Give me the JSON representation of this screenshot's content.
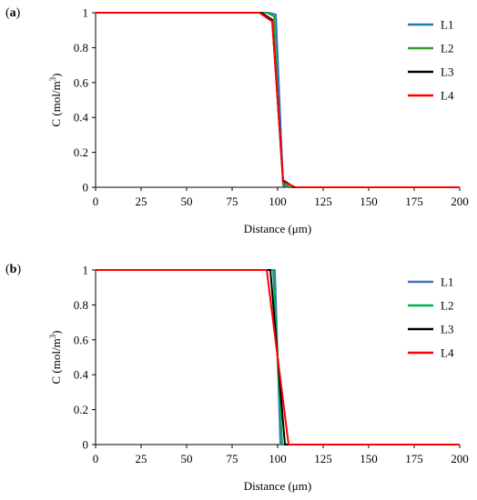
{
  "chart_data": [
    {
      "type": "line",
      "panel_label": "(a)",
      "panel_letter": "a",
      "xlabel": "Distance (μm)",
      "ylabel": "C (mol/m³)",
      "ylabel_main": "C (mol/m",
      "ylabel_sup": "3",
      "ylabel_close": ")",
      "xlim": [
        0,
        200
      ],
      "ylim": [
        0,
        1
      ],
      "xticks": [
        "0",
        "25",
        "50",
        "75",
        "100",
        "125",
        "150",
        "175",
        "200"
      ],
      "yticks": [
        "0",
        "0.2",
        "0.4",
        "0.6",
        "0.8",
        "1"
      ],
      "grid": false,
      "legend_position": "right",
      "series": [
        {
          "name": "L1",
          "color": "#1f77b4",
          "x": [
            0,
            95,
            99,
            101,
            103,
            106,
            200
          ],
          "y": [
            1,
            1,
            0.99,
            0.5,
            0.01,
            0,
            0
          ]
        },
        {
          "name": "L2",
          "color": "#2ca02c",
          "x": [
            0,
            94,
            98,
            100,
            103,
            107,
            200
          ],
          "y": [
            1,
            1,
            0.98,
            0.5,
            0.02,
            0,
            0
          ]
        },
        {
          "name": "L3",
          "color": "#000000",
          "x": [
            0,
            91,
            97,
            100,
            103,
            109,
            200
          ],
          "y": [
            1,
            1,
            0.96,
            0.5,
            0.04,
            0,
            0
          ]
        },
        {
          "name": "L4",
          "color": "#ff0000",
          "x": [
            0,
            90,
            97,
            100,
            103,
            110,
            200
          ],
          "y": [
            1,
            1,
            0.95,
            0.5,
            0.03,
            0,
            0
          ]
        }
      ]
    },
    {
      "type": "line",
      "panel_label": "(b)",
      "panel_letter": "b",
      "xlabel": "Distance (μm)",
      "ylabel": "C (mol/m³)",
      "ylabel_main": "C (mol/m",
      "ylabel_sup": "3",
      "ylabel_close": ")",
      "xlim": [
        0,
        200
      ],
      "ylim": [
        0,
        1
      ],
      "xticks": [
        "0",
        "25",
        "50",
        "75",
        "100",
        "125",
        "150",
        "175",
        "200"
      ],
      "yticks": [
        "0",
        "0.2",
        "0.4",
        "0.6",
        "0.8",
        "1"
      ],
      "grid": false,
      "legend_position": "right",
      "series": [
        {
          "name": "L1",
          "color": "#4472c4",
          "x": [
            0,
            98.5,
            101.5,
            200
          ],
          "y": [
            1,
            1,
            0,
            0
          ]
        },
        {
          "name": "L2",
          "color": "#00b050",
          "x": [
            0,
            97.5,
            102.5,
            200
          ],
          "y": [
            1,
            1,
            0,
            0
          ]
        },
        {
          "name": "L3",
          "color": "#000000",
          "x": [
            0,
            96,
            104,
            200
          ],
          "y": [
            1,
            1,
            0,
            0
          ]
        },
        {
          "name": "L4",
          "color": "#ff0000",
          "x": [
            0,
            94,
            106,
            200
          ],
          "y": [
            1,
            1,
            0,
            0
          ]
        }
      ]
    }
  ]
}
